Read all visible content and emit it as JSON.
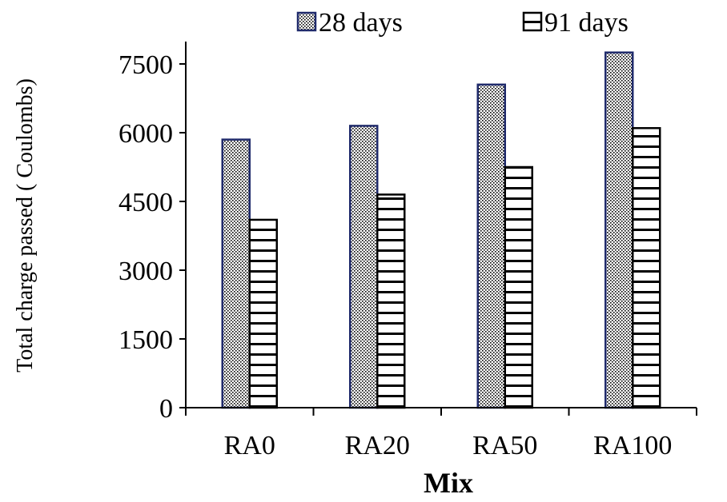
{
  "chart_data": {
    "type": "bar",
    "categories": [
      "RA0",
      "RA20",
      "RA50",
      "RA100"
    ],
    "series": [
      {
        "name": "28 days",
        "values": [
          5850,
          6150,
          7050,
          7750
        ],
        "fill": "dots",
        "stroke": "#1f2a6b"
      },
      {
        "name": "91 days",
        "values": [
          4100,
          4650,
          5250,
          6100
        ],
        "fill": "horizontal-lines",
        "stroke": "#000000"
      }
    ],
    "title": "",
    "xlabel": "Mix",
    "ylabel": "Total charge passed ( Coulombs)",
    "ylim": [
      0,
      7500
    ],
    "yticks": [
      0,
      1500,
      3000,
      4500,
      6000,
      7500
    ],
    "grid": false,
    "legend_position": "top"
  }
}
